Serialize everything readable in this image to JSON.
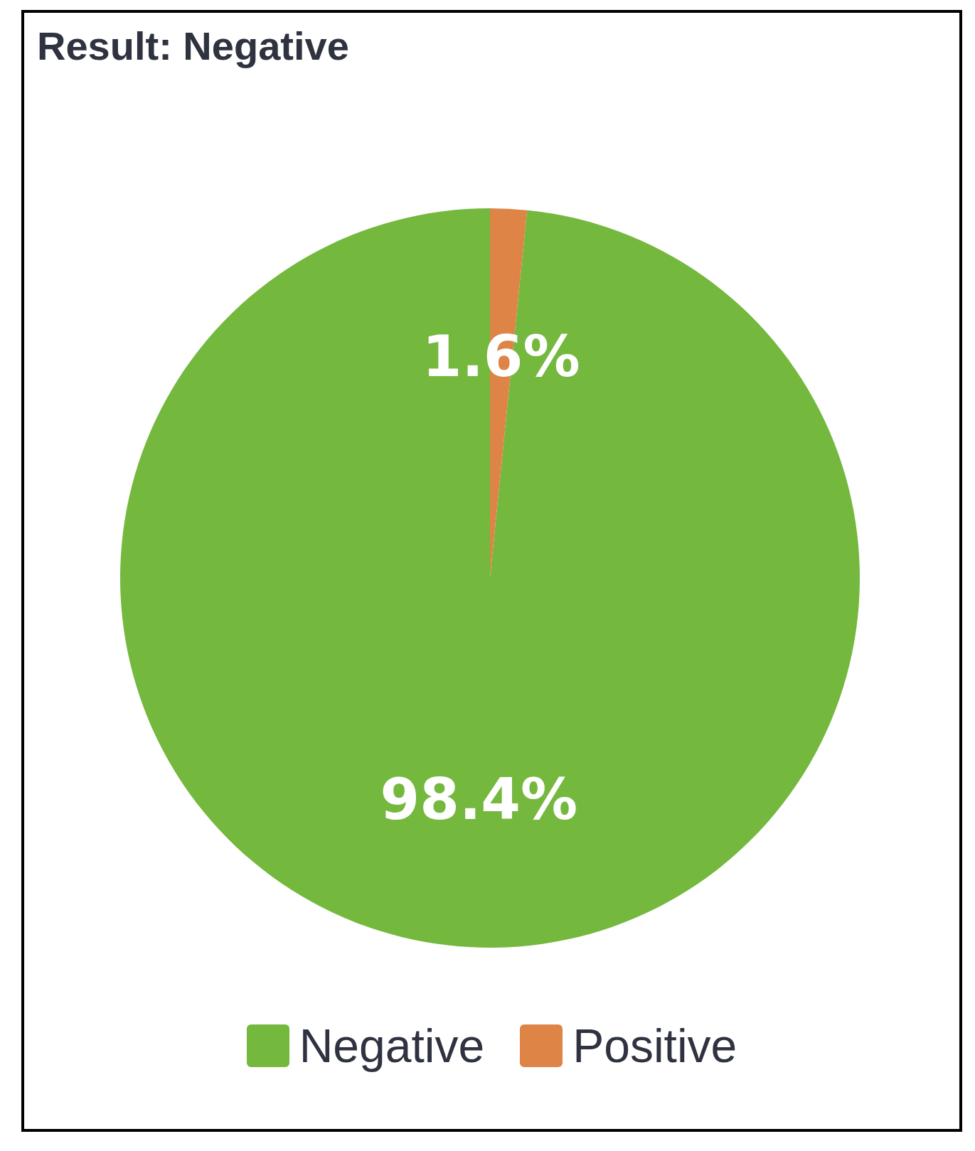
{
  "chart_data": {
    "type": "pie",
    "title": "Result: Negative",
    "categories": [
      "Negative",
      "Positive"
    ],
    "values": [
      98.4,
      1.6
    ],
    "colors": [
      "#74b83e",
      "#dd8446"
    ],
    "value_labels": [
      "98.4%",
      "1.6%"
    ],
    "legend": "bottom"
  }
}
